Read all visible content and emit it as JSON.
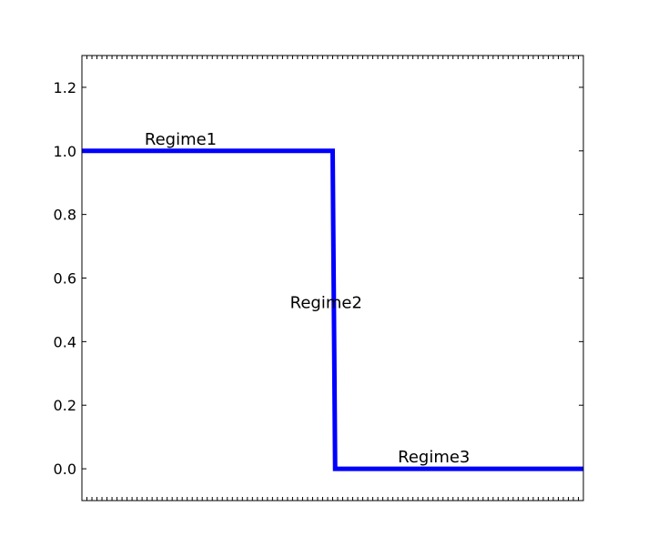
{
  "chart_data": {
    "type": "line",
    "title": "",
    "xlabel": "",
    "ylabel": "",
    "xlim": [
      0,
      1
    ],
    "ylim": [
      -0.1,
      1.3
    ],
    "yticks": [
      0.0,
      0.2,
      0.4,
      0.6,
      0.8,
      1.0,
      1.2
    ],
    "ytick_labels": [
      "0.0",
      "0.2",
      "0.4",
      "0.6",
      "0.8",
      "1.0",
      "1.2"
    ],
    "x_tick_labels_visible": false,
    "x_minor_ticks": 100,
    "grid": false,
    "legend": "none",
    "series": [
      {
        "color": "#0000ff",
        "x": [
          0.0,
          0.5,
          0.505,
          1.0
        ],
        "y": [
          1.0,
          1.0,
          0.0,
          0.0
        ]
      }
    ],
    "annotations": [
      {
        "text": "Regime1",
        "x": 0.125,
        "y": 1.02
      },
      {
        "text": "Regime2",
        "x": 0.415,
        "y": 0.505
      },
      {
        "text": "Regime3",
        "x": 0.63,
        "y": 0.02
      }
    ]
  }
}
